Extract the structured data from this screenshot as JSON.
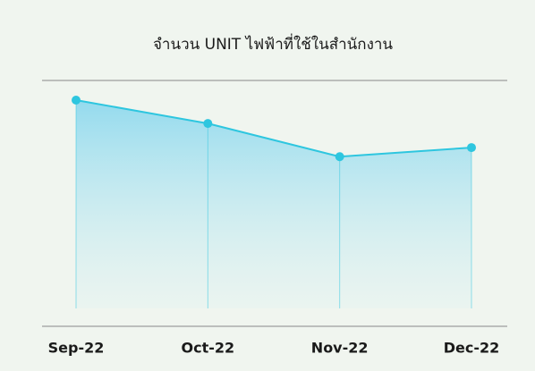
{
  "chart_data": {
    "type": "area",
    "title": "จำนวน UNIT ไฟฟ้าที่ใช้ในสำนักงาน",
    "categories": [
      "Sep-22",
      "Oct-22",
      "Nov-22",
      "Dec-22"
    ],
    "values": [
      92,
      82.5,
      69,
      72.7
    ],
    "color": "#2ec6df",
    "ylim": [
      0,
      100
    ]
  }
}
